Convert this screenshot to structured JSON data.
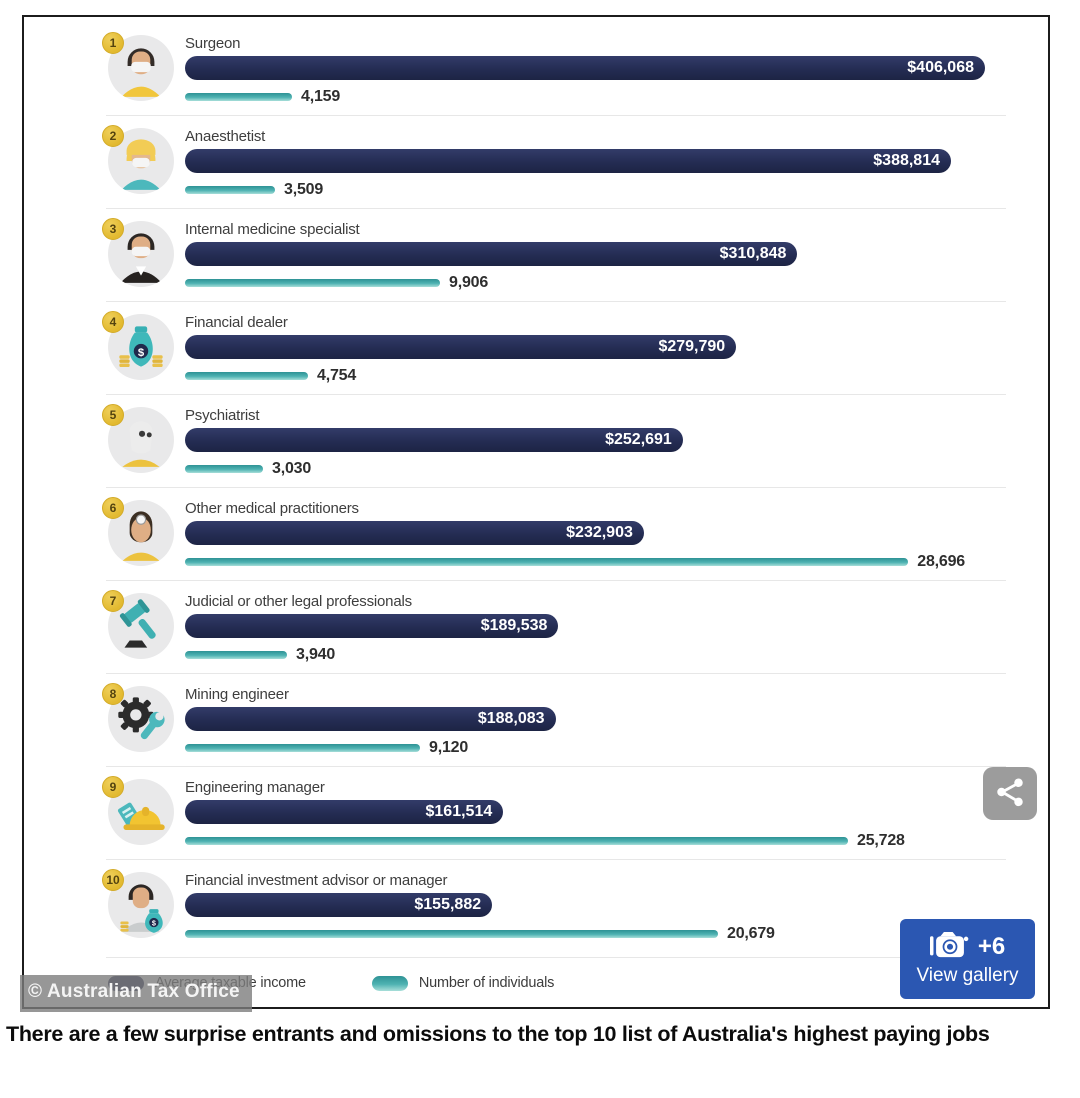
{
  "chart_data": {
    "type": "bar",
    "orientation": "horizontal",
    "legend_position": "bottom",
    "categories": [
      "Surgeon",
      "Anaesthetist",
      "Internal medicine specialist",
      "Financial dealer",
      "Psychiatrist",
      "Other medical practitioners",
      "Judicial or other legal professionals",
      "Mining engineer",
      "Engineering manager",
      "Financial investment advisor or manager"
    ],
    "series": [
      {
        "name": "Average taxable income",
        "color": "#242c53",
        "values": [
          406068,
          388814,
          310848,
          279790,
          252691,
          232903,
          189538,
          188083,
          161514,
          155882
        ]
      },
      {
        "name": "Number of individuals",
        "color": "#41a4a4",
        "values": [
          4159,
          3509,
          9906,
          4754,
          3030,
          28696,
          3940,
          9120,
          25728,
          20679
        ]
      }
    ],
    "rows": [
      {
        "rank": "1",
        "title": "Surgeon",
        "income": 406068,
        "income_label": "$406,068",
        "individuals": 4159,
        "individuals_label": "4,159",
        "icon": "surgeon"
      },
      {
        "rank": "2",
        "title": "Anaesthetist",
        "income": 388814,
        "income_label": "$388,814",
        "individuals": 3509,
        "individuals_label": "3,509",
        "icon": "anaesthetist"
      },
      {
        "rank": "3",
        "title": "Internal medicine specialist",
        "income": 310848,
        "income_label": "$310,848",
        "individuals": 9906,
        "individuals_label": "9,906",
        "icon": "doctor-suit"
      },
      {
        "rank": "4",
        "title": "Financial dealer",
        "income": 279790,
        "income_label": "$279,790",
        "individuals": 4754,
        "individuals_label": "4,754",
        "icon": "money-bag"
      },
      {
        "rank": "5",
        "title": "Psychiatrist",
        "income": 252691,
        "income_label": "$252,691",
        "individuals": 3030,
        "individuals_label": "3,030",
        "icon": "psychiatrist"
      },
      {
        "rank": "6",
        "title": "Other medical practitioners",
        "income": 232903,
        "income_label": "$232,903",
        "individuals": 28696,
        "individuals_label": "28,696",
        "icon": "doctor-head-mirror"
      },
      {
        "rank": "7",
        "title": "Judicial or other legal professionals",
        "income": 189538,
        "income_label": "$189,538",
        "individuals": 3940,
        "individuals_label": "3,940",
        "icon": "gavel"
      },
      {
        "rank": "8",
        "title": "Mining engineer",
        "income": 188083,
        "income_label": "$188,083",
        "individuals": 9120,
        "individuals_label": "9,120",
        "icon": "gear-wrench"
      },
      {
        "rank": "9",
        "title": "Engineering manager",
        "income": 161514,
        "income_label": "$161,514",
        "individuals": 25728,
        "individuals_label": "25,728",
        "icon": "hard-hat"
      },
      {
        "rank": "10",
        "title": "Financial investment advisor or manager",
        "income": 155882,
        "income_label": "$155,882",
        "individuals": 20679,
        "individuals_label": "20,679",
        "icon": "advisor-money-bag"
      }
    ]
  },
  "legend": {
    "income_label": "Average taxable income",
    "individuals_label": "Number of individuals"
  },
  "watermark": {
    "text": "© Australian Tax Office"
  },
  "gallery_button": {
    "count_label": "+6",
    "label": "View gallery"
  },
  "caption": {
    "text": "There are a few surprise entrants and omissions to the top 10 list of Australia's highest paying jobs"
  },
  "colors": {
    "income_bar": "#242c53",
    "individuals_line": "#41a4a4",
    "rank_badge": "#e2b92f",
    "gallery_button": "#2b57b2",
    "share_button": "#9c9c9c"
  }
}
